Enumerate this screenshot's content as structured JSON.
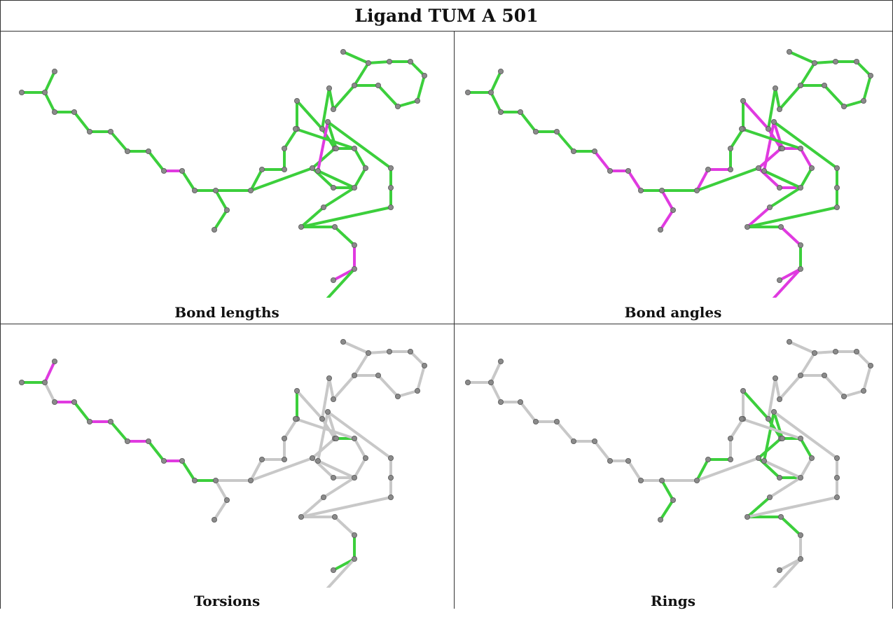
{
  "title": "Ligand TUM A 501",
  "colors": {
    "pass": "#3ccf3c",
    "fail": "#e03ae0",
    "neutral": "#c8c8c8",
    "atom": "#8a8a8a",
    "border": "#333333"
  },
  "panels": [
    {
      "id": "bond-lengths",
      "label": "Bond lengths",
      "default_color": "pass",
      "fail_bonds": [
        [
          30,
          31
        ],
        [
          31,
          32
        ],
        [
          29,
          30
        ],
        [
          9,
          10
        ],
        [
          35,
          36
        ],
        [
          36,
          37
        ]
      ]
    },
    {
      "id": "bond-angles",
      "label": "Bond angles",
      "default_color": "pass",
      "fail_bonds": [
        [
          8,
          9
        ],
        [
          9,
          10
        ],
        [
          10,
          11
        ],
        [
          12,
          13
        ],
        [
          13,
          14
        ],
        [
          14,
          15
        ],
        [
          15,
          16
        ],
        [
          16,
          17
        ],
        [
          17,
          12
        ],
        [
          20,
          21
        ],
        [
          21,
          22
        ],
        [
          22,
          23
        ],
        [
          23,
          24
        ],
        [
          24,
          25
        ],
        [
          25,
          20
        ],
        [
          26,
          27
        ],
        [
          27,
          28
        ],
        [
          28,
          29
        ],
        [
          29,
          30
        ],
        [
          30,
          31
        ],
        [
          31,
          32
        ],
        [
          32,
          33
        ],
        [
          32,
          34
        ],
        [
          34,
          35
        ],
        [
          26,
          19
        ],
        [
          36,
          37
        ],
        [
          36,
          38
        ]
      ]
    },
    {
      "id": "torsions",
      "label": "Torsions",
      "default_color": "neutral",
      "pass_bonds": [
        [
          0,
          1
        ],
        [
          2,
          3
        ],
        [
          4,
          5
        ],
        [
          6,
          7
        ],
        [
          8,
          9
        ],
        [
          10,
          11
        ],
        [
          19,
          20
        ],
        [
          12,
          19
        ],
        [
          11,
          12
        ],
        [
          14,
          23
        ],
        [
          26,
          30
        ],
        [
          27,
          28
        ],
        [
          35,
          36
        ],
        [
          36,
          37
        ]
      ],
      "fail_bonds": [
        [
          1,
          2
        ],
        [
          3,
          4
        ],
        [
          5,
          6
        ],
        [
          7,
          8
        ],
        [
          9,
          10
        ],
        [
          18,
          16
        ],
        [
          24,
          35
        ]
      ]
    },
    {
      "id": "rings",
      "label": "Rings",
      "default_color": "neutral",
      "pass_bonds": [
        [
          12,
          13
        ],
        [
          13,
          14
        ],
        [
          14,
          15
        ],
        [
          15,
          16
        ],
        [
          16,
          17
        ],
        [
          17,
          12
        ],
        [
          20,
          21
        ],
        [
          21,
          22
        ],
        [
          22,
          23
        ],
        [
          23,
          24
        ],
        [
          24,
          25
        ],
        [
          25,
          20
        ],
        [
          26,
          27
        ],
        [
          27,
          28
        ],
        [
          28,
          29
        ],
        [
          29,
          30
        ],
        [
          30,
          26
        ],
        [
          31,
          32
        ],
        [
          32,
          33
        ],
        [
          33,
          34
        ],
        [
          34,
          35
        ],
        [
          35,
          31
        ]
      ]
    }
  ]
}
